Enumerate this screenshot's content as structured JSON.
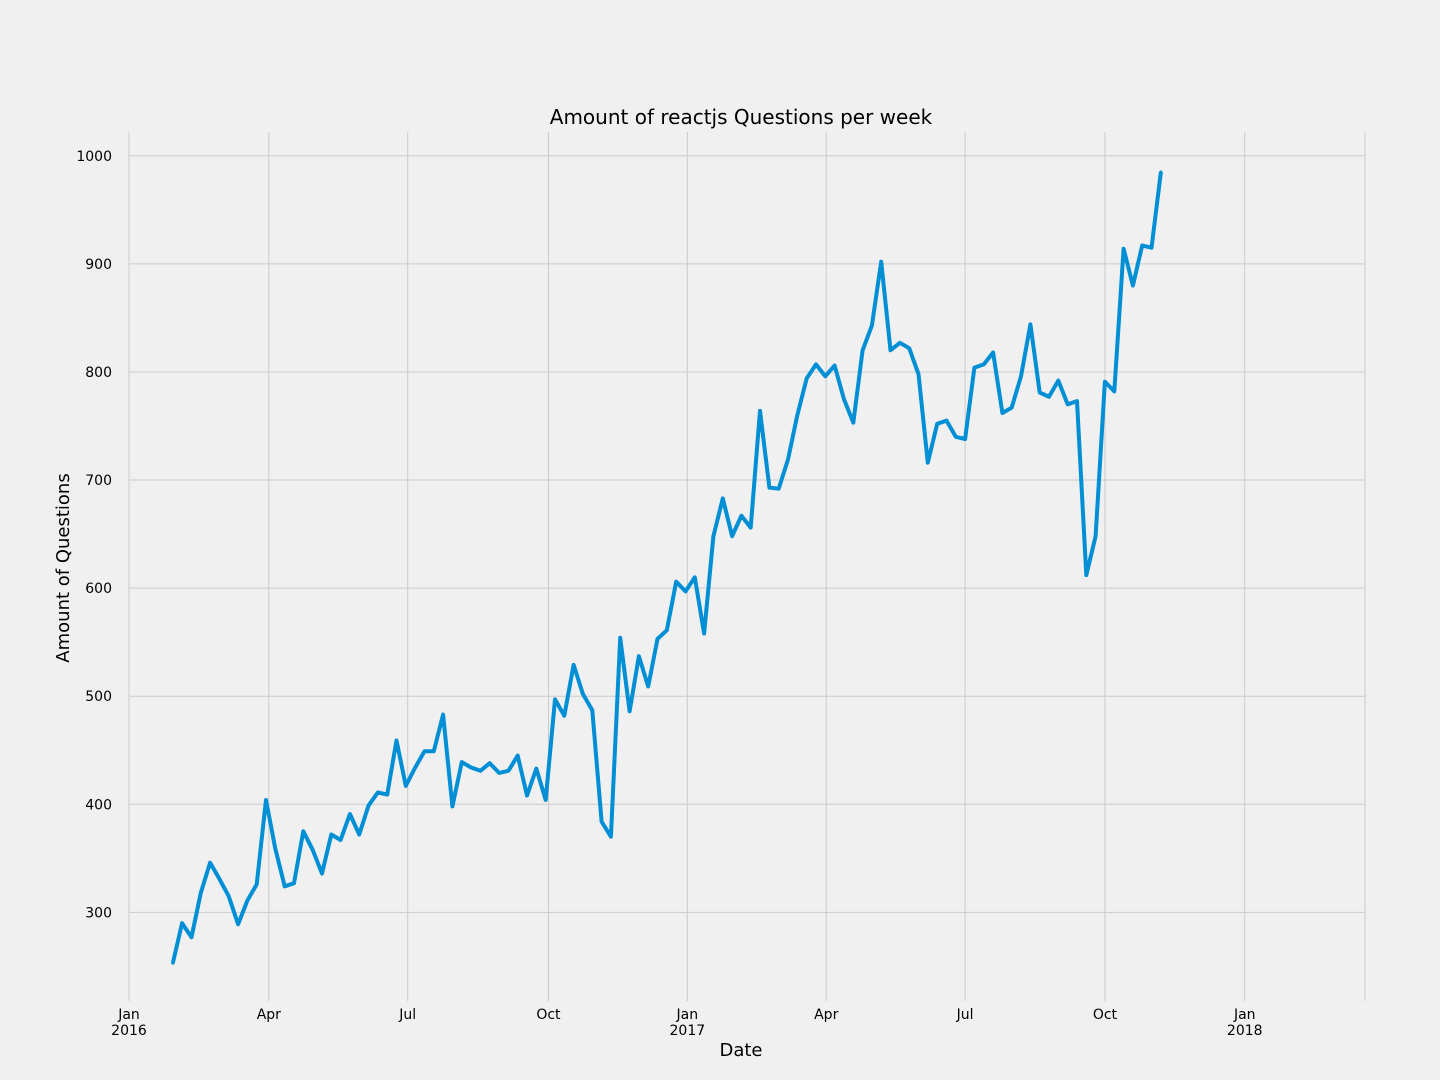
{
  "chart_data": {
    "type": "line",
    "title": "Amount of reactjs Questions per week",
    "xlabel": "Date",
    "ylabel": "Amount of Questions",
    "grid": true,
    "legend": "none",
    "colors": {
      "line": "#008fd5",
      "grid": "#cbcbcb",
      "background": "#f0f0f0"
    },
    "ylim": [
      218,
      1022
    ],
    "xlim_weeks": [
      0,
      132.6
    ],
    "y_ticks": [
      300,
      400,
      500,
      600,
      700,
      800,
      900,
      1000
    ],
    "x_ticks": [
      {
        "week": 0,
        "label": "Jan",
        "sub": "2016"
      },
      {
        "week": 15,
        "label": "Apr",
        "sub": ""
      },
      {
        "week": 29.9,
        "label": "Jul",
        "sub": ""
      },
      {
        "week": 45,
        "label": "Oct",
        "sub": ""
      },
      {
        "week": 59.9,
        "label": "Jan",
        "sub": "2017"
      },
      {
        "week": 74.8,
        "label": "Apr",
        "sub": ""
      },
      {
        "week": 89.7,
        "label": "Jul",
        "sub": ""
      },
      {
        "week": 104.7,
        "label": "Oct",
        "sub": ""
      },
      {
        "week": 119.7,
        "label": "Jan",
        "sub": "2018"
      }
    ],
    "start_week": 4.7,
    "values": [
      253,
      290,
      277,
      318,
      346,
      331,
      315,
      289,
      311,
      326,
      404,
      359,
      324,
      327,
      375,
      358,
      336,
      372,
      367,
      391,
      372,
      399,
      411,
      409,
      459,
      417,
      434,
      449,
      449,
      483,
      398,
      439,
      434,
      431,
      438,
      429,
      431,
      445,
      408,
      433,
      404,
      497,
      482,
      529,
      502,
      487,
      384,
      370,
      554,
      486,
      537,
      509,
      553,
      561,
      606,
      597,
      610,
      558,
      648,
      683,
      648,
      667,
      656,
      764,
      693,
      692,
      719,
      760,
      794,
      807,
      796,
      806,
      775,
      753,
      820,
      843,
      902,
      820,
      827,
      822,
      798,
      716,
      752,
      755,
      740,
      738,
      804,
      807,
      818,
      762,
      767,
      796,
      844,
      781,
      777,
      792,
      770,
      773,
      612,
      648,
      791,
      782,
      914,
      880,
      917,
      915,
      985
    ]
  }
}
